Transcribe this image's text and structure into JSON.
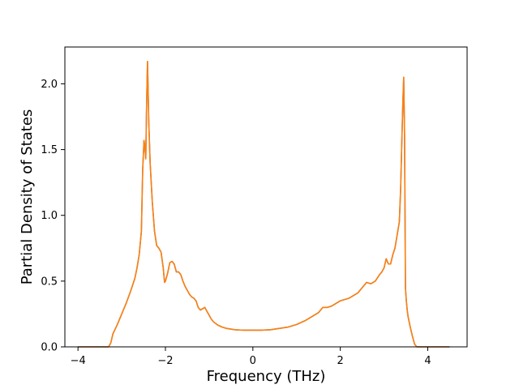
{
  "chart_data": {
    "type": "line",
    "xlabel": "Frequency (THz)",
    "ylabel": "Partial Density of States",
    "xlim": [
      -4.3,
      4.9
    ],
    "ylim": [
      0,
      2.28
    ],
    "xticks": [
      -4,
      -2,
      0,
      2,
      4
    ],
    "xtick_labels": [
      "−4",
      "−2",
      "0",
      "2",
      "4"
    ],
    "yticks": [
      0.0,
      0.5,
      1.0,
      1.5,
      2.0
    ],
    "ytick_labels": [
      "0.0",
      "0.5",
      "1.0",
      "1.5",
      "2.0"
    ],
    "grid": false,
    "colors": {
      "line": "#ff7f0e",
      "line_under": "#2f7fbf",
      "axes": "#000000",
      "background": "#ffffff"
    },
    "series": [
      {
        "x": [
          -4.0,
          -3.5,
          -3.3,
          -3.25,
          -3.2,
          -3.1,
          -3.0,
          -2.9,
          -2.8,
          -2.7,
          -2.65,
          -2.6,
          -2.55,
          -2.52,
          -2.49,
          -2.47,
          -2.45,
          -2.43,
          -2.41,
          -2.38,
          -2.35,
          -2.3,
          -2.25,
          -2.2,
          -2.15,
          -2.1,
          -2.05,
          -2.02,
          -2.0,
          -1.95,
          -1.9,
          -1.85,
          -1.8,
          -1.75,
          -1.7,
          -1.65,
          -1.6,
          -1.55,
          -1.5,
          -1.45,
          -1.4,
          -1.35,
          -1.3,
          -1.25,
          -1.2,
          -1.15,
          -1.1,
          -1.05,
          -1.0,
          -0.95,
          -0.9,
          -0.8,
          -0.7,
          -0.6,
          -0.5,
          -0.4,
          -0.3,
          -0.2,
          -0.1,
          0.0,
          0.2,
          0.4,
          0.6,
          0.8,
          1.0,
          1.2,
          1.4,
          1.5,
          1.6,
          1.7,
          1.8,
          1.9,
          2.0,
          2.1,
          2.2,
          2.3,
          2.4,
          2.5,
          2.6,
          2.7,
          2.8,
          2.9,
          2.95,
          3.0,
          3.05,
          3.1,
          3.15,
          3.2,
          3.25,
          3.3,
          3.35,
          3.38,
          3.41,
          3.43,
          3.45,
          3.47,
          3.49,
          3.51,
          3.53,
          3.55,
          3.6,
          3.65,
          3.7,
          3.75,
          3.8,
          3.85,
          4.0,
          4.5
        ],
        "y": [
          0.0,
          0.0,
          0.0,
          0.03,
          0.1,
          0.17,
          0.25,
          0.33,
          0.42,
          0.52,
          0.6,
          0.7,
          0.88,
          1.35,
          1.57,
          1.52,
          1.43,
          1.85,
          2.17,
          1.7,
          1.4,
          1.1,
          0.88,
          0.77,
          0.75,
          0.72,
          0.6,
          0.49,
          0.5,
          0.56,
          0.64,
          0.65,
          0.63,
          0.57,
          0.57,
          0.55,
          0.5,
          0.46,
          0.43,
          0.4,
          0.38,
          0.37,
          0.35,
          0.3,
          0.28,
          0.29,
          0.3,
          0.27,
          0.24,
          0.21,
          0.19,
          0.165,
          0.15,
          0.14,
          0.135,
          0.13,
          0.128,
          0.127,
          0.127,
          0.127,
          0.127,
          0.13,
          0.14,
          0.15,
          0.17,
          0.2,
          0.24,
          0.26,
          0.3,
          0.3,
          0.31,
          0.33,
          0.35,
          0.36,
          0.37,
          0.39,
          0.41,
          0.45,
          0.49,
          0.48,
          0.5,
          0.55,
          0.57,
          0.6,
          0.67,
          0.63,
          0.63,
          0.7,
          0.75,
          0.85,
          0.95,
          1.2,
          1.6,
          1.85,
          2.05,
          1.6,
          0.45,
          0.35,
          0.28,
          0.23,
          0.15,
          0.08,
          0.02,
          0.0,
          0.0,
          0.0,
          0.0,
          0.0
        ]
      }
    ]
  }
}
